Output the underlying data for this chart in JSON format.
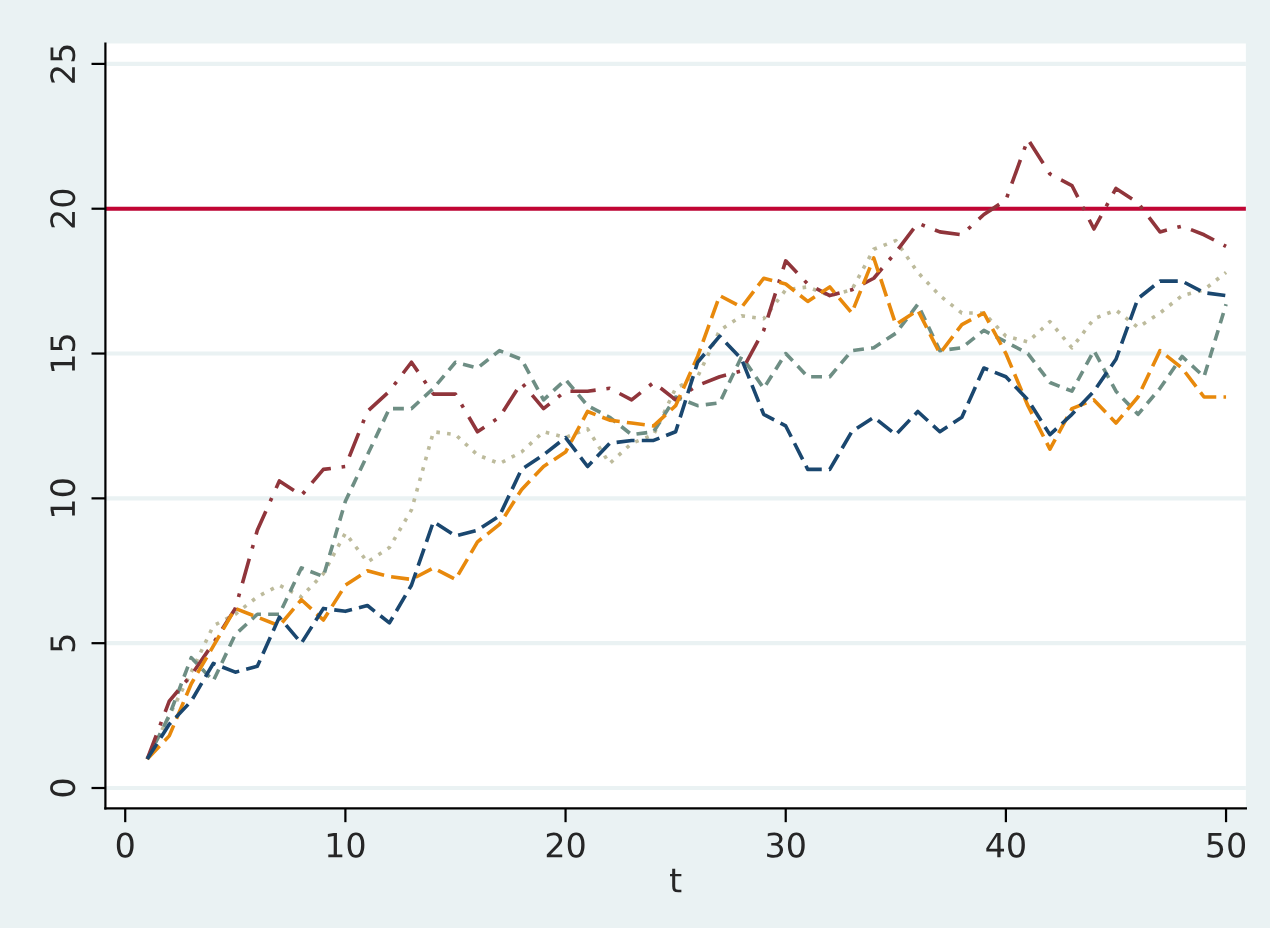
{
  "chart_data": {
    "type": "line",
    "xlabel": "t",
    "x": [
      1,
      2,
      3,
      4,
      5,
      6,
      7,
      8,
      9,
      10,
      11,
      12,
      13,
      14,
      15,
      16,
      17,
      18,
      19,
      20,
      21,
      22,
      23,
      24,
      25,
      26,
      27,
      28,
      29,
      30,
      31,
      32,
      33,
      34,
      35,
      36,
      37,
      38,
      39,
      40,
      41,
      42,
      43,
      44,
      45,
      46,
      47,
      48,
      49,
      50
    ],
    "series": [
      {
        "color": "#1a476f",
        "line_style": "dashed",
        "values": [
          1,
          2.2,
          3.0,
          4.3,
          4.0,
          4.2,
          5.9,
          5.0,
          6.2,
          6.1,
          6.3,
          5.7,
          7.0,
          9.2,
          8.7,
          8.9,
          9.4,
          11.0,
          11.5,
          12.1,
          11.1,
          11.9,
          12.0,
          12.0,
          12.3,
          14.7,
          15.6,
          14.8,
          12.9,
          12.5,
          11.0,
          11.0,
          12.3,
          12.8,
          12.2,
          13.0,
          12.3,
          12.8,
          14.5,
          14.2,
          13.4,
          12.2,
          12.9,
          13.7,
          14.8,
          16.9,
          17.5,
          17.5,
          17.1,
          17.0
        ]
      },
      {
        "color": "#e8890c",
        "line_style": "dashed",
        "values": [
          1,
          1.8,
          3.6,
          4.9,
          6.2,
          5.9,
          5.6,
          6.5,
          5.8,
          7.0,
          7.5,
          7.3,
          7.2,
          7.6,
          7.2,
          8.5,
          9.1,
          10.3,
          11.1,
          11.6,
          13.0,
          12.7,
          12.6,
          12.5,
          13.2,
          14.9,
          17.0,
          16.6,
          17.6,
          17.4,
          16.8,
          17.3,
          16.4,
          18.3,
          16.0,
          16.5,
          15.0,
          16.0,
          16.4,
          15.0,
          13.2,
          11.7,
          13.1,
          13.4,
          12.6,
          13.5,
          15.1,
          14.5,
          13.5,
          13.5
        ]
      },
      {
        "color": "#90353b",
        "line_style": "dashdot",
        "values": [
          1,
          3.0,
          3.9,
          5.0,
          6.2,
          8.9,
          10.6,
          10.1,
          11.0,
          11.1,
          13.0,
          13.7,
          14.7,
          13.6,
          13.6,
          12.3,
          12.8,
          14.0,
          13.1,
          13.7,
          13.7,
          13.8,
          13.4,
          14.0,
          13.4,
          13.9,
          14.2,
          14.4,
          15.8,
          18.2,
          17.4,
          17.0,
          17.2,
          17.6,
          18.5,
          19.5,
          19.2,
          19.1,
          19.8,
          20.3,
          22.4,
          21.2,
          20.8,
          19.3,
          20.7,
          20.2,
          19.2,
          19.4,
          19.1,
          18.7
        ]
      },
      {
        "color": "#6e8e84",
        "line_style": "dashed",
        "values": [
          1,
          2.5,
          4.5,
          3.7,
          5.3,
          6.0,
          6.0,
          7.6,
          7.3,
          9.9,
          11.5,
          13.1,
          13.1,
          13.8,
          14.7,
          14.5,
          15.1,
          14.8,
          13.4,
          14.1,
          13.2,
          12.8,
          12.2,
          12.3,
          13.5,
          13.2,
          13.3,
          14.9,
          13.8,
          15.0,
          14.2,
          14.2,
          15.1,
          15.2,
          15.7,
          16.7,
          15.1,
          15.2,
          15.8,
          15.4,
          15.0,
          14.0,
          13.7,
          15.1,
          13.7,
          12.9,
          13.8,
          14.9,
          14.2,
          16.7
        ]
      },
      {
        "color": "#bdbb9c",
        "line_style": "dotted",
        "values": [
          1,
          2.5,
          4.0,
          5.6,
          6.0,
          6.6,
          7.0,
          6.6,
          7.4,
          8.8,
          7.8,
          8.3,
          9.6,
          12.3,
          12.2,
          11.5,
          11.2,
          11.6,
          12.3,
          12.1,
          12.4,
          11.2,
          11.9,
          12.2,
          13.8,
          14.2,
          15.8,
          16.3,
          16.2,
          17.2,
          17.3,
          17.0,
          17.2,
          18.6,
          18.9,
          17.8,
          17.0,
          16.4,
          16.4,
          15.6,
          15.4,
          16.1,
          15.2,
          16.2,
          16.5,
          15.9,
          16.4,
          17.0,
          17.2,
          17.8
        ]
      }
    ],
    "xlim": [
      -0.9,
      50.9
    ],
    "ylim": [
      -0.7,
      25.7
    ],
    "xticks": [
      0,
      10,
      20,
      30,
      40,
      50
    ],
    "yticks": [
      0,
      5,
      10,
      15,
      20,
      25
    ],
    "grid": "y",
    "ref_lines": [
      {
        "axis": "y",
        "value": 20,
        "color": "#c10534",
        "line_style": "solid"
      }
    ]
  }
}
